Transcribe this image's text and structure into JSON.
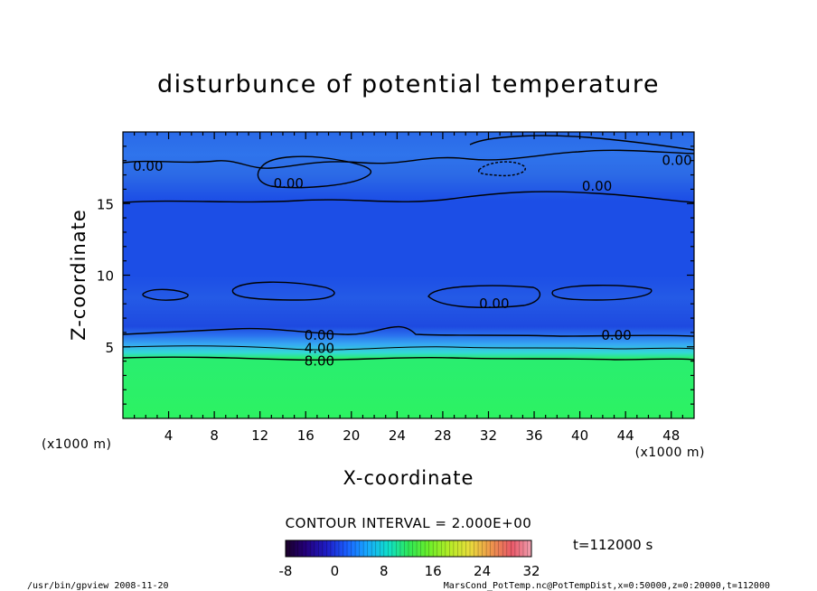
{
  "chart_data": {
    "type": "heatmap",
    "title": "disturbunce of potential temperature",
    "xlabel": "X-coordinate",
    "ylabel": "Z-coordinate",
    "x_unit_left": "(x1000 m)",
    "x_unit_right": "(x1000 m)",
    "xlim": [
      0,
      50
    ],
    "ylim": [
      0,
      20
    ],
    "xticks": [
      "4",
      "8",
      "12",
      "16",
      "20",
      "24",
      "28",
      "32",
      "36",
      "40",
      "44",
      "48"
    ],
    "xtick_values": [
      4,
      8,
      12,
      16,
      20,
      24,
      28,
      32,
      36,
      40,
      44,
      48
    ],
    "yticks": [
      "5",
      "10",
      "15"
    ],
    "ytick_values": [
      5,
      10,
      15
    ],
    "contour_labels": [
      {
        "text": "0.00",
        "x": 2.2,
        "z": 17.6
      },
      {
        "text": "0.00",
        "x": 14.5,
        "z": 16.4
      },
      {
        "text": "0.00",
        "x": 48.5,
        "z": 18.0
      },
      {
        "text": "0.00",
        "x": 41.5,
        "z": 16.2
      },
      {
        "text": "0.00",
        "x": 32.5,
        "z": 8.0
      },
      {
        "text": "0.00",
        "x": 17.2,
        "z": 5.8
      },
      {
        "text": "0.00",
        "x": 43.2,
        "z": 5.8
      },
      {
        "text": "4.00",
        "x": 17.2,
        "z": 4.9
      },
      {
        "text": "8.00",
        "x": 17.2,
        "z": 4.0
      }
    ],
    "field_summary": [
      {
        "z_range": [
          0,
          4.0
        ],
        "value": 16
      },
      {
        "z_range": [
          4.0,
          5.8
        ],
        "value": 4
      },
      {
        "z_range": [
          5.8,
          20
        ],
        "value": 0
      }
    ],
    "contour_interval": "CONTOUR INTERVAL = 2.000E+00",
    "colorbar": {
      "min": -8,
      "max": 32,
      "ticks": [
        "-8",
        "0",
        "8",
        "16",
        "24",
        "32"
      ],
      "tick_values": [
        -8,
        0,
        8,
        16,
        24,
        32
      ],
      "colors": [
        "#1a0028",
        "#24007a",
        "#1e1ec8",
        "#1a60ff",
        "#18a8ff",
        "#10e0c8",
        "#2ee858",
        "#6aee2a",
        "#b8ec28",
        "#e8dc3c",
        "#ee9a4a",
        "#e85868",
        "#f0a0b0"
      ]
    },
    "time_label": "t=112000 s",
    "footer_left": "/usr/bin/gpview  2008-11-20",
    "footer_right": "MarsCond_PotTemp.nc@PotTempDist,x=0:50000,z=0:20000,t=112000",
    "colors": {
      "upper": "#2a64e6",
      "mid": "#1e48e0",
      "band_dark": "#3a78ee",
      "low": "#2af062"
    }
  }
}
